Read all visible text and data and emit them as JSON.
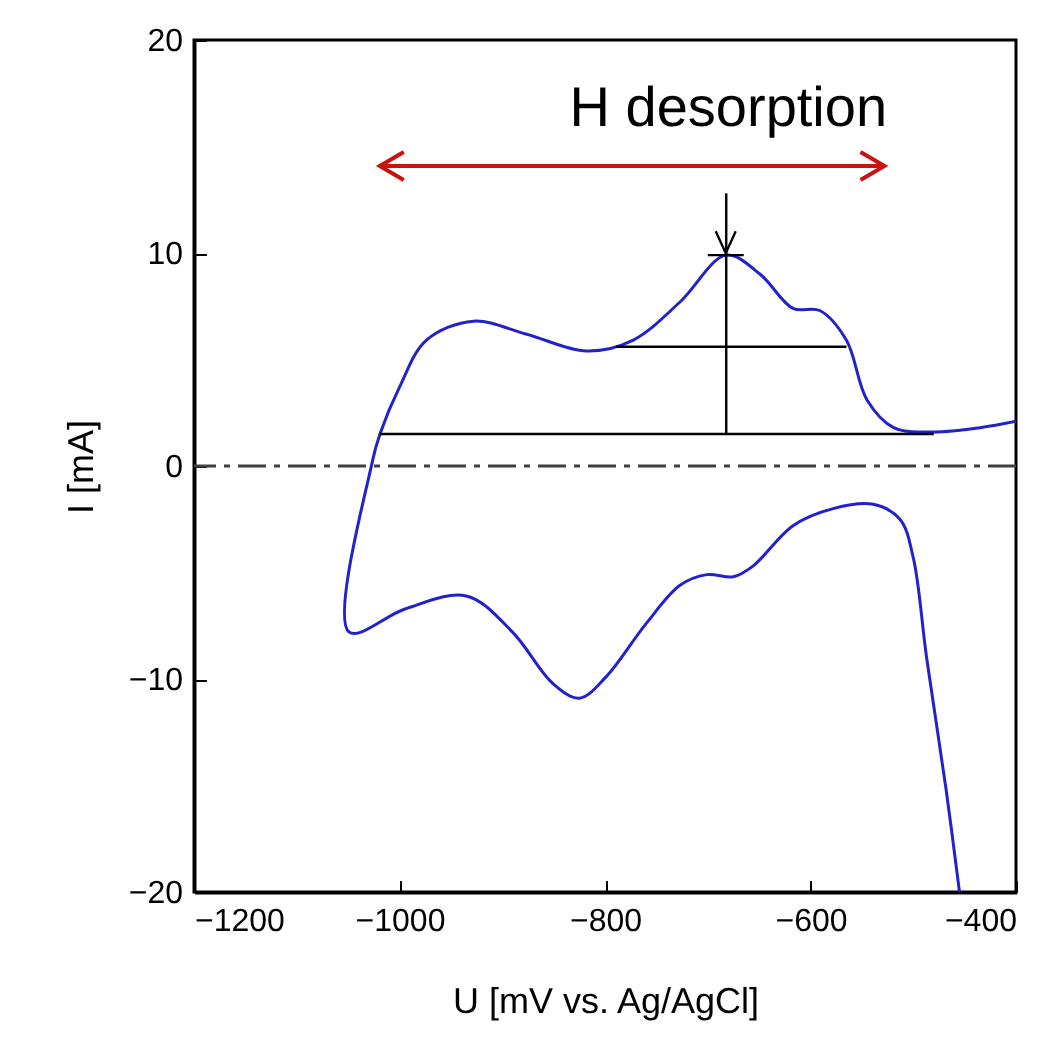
{
  "chart_data": {
    "type": "line",
    "xlabel": "U [mV vs. Ag/AgCl]",
    "ylabel": "I [mA]",
    "xlim": [
      -1200,
      -400
    ],
    "ylim": [
      -20,
      20
    ],
    "xticks": [
      -1200,
      -1000,
      -800,
      -600,
      -400
    ],
    "yticks": [
      -20,
      -10,
      0,
      10,
      20
    ],
    "grid": false,
    "annotations": [
      "H desorption"
    ],
    "ref_lines": [
      {
        "axis": "y",
        "value": 0,
        "color": "#404040",
        "line_style": "dashdot"
      }
    ],
    "series": [
      {
        "color": "#2222cc",
        "x": [
          -455,
          -468,
          -487,
          -500,
          -513,
          -539,
          -578,
          -617,
          -656,
          -675,
          -701,
          -727,
          -760,
          -799,
          -825,
          -851,
          -890,
          -935,
          -994,
          -1049,
          -1026,
          -1019,
          -1000,
          -974,
          -928,
          -877,
          -818,
          -773,
          -727,
          -682,
          -649,
          -617,
          -591,
          -565,
          -545,
          -519,
          -480,
          -435,
          -400
        ],
        "values": [
          -20,
          -15.2,
          -9.0,
          -4.3,
          -2.5,
          -1.8,
          -2.0,
          -2.8,
          -4.7,
          -5.2,
          -5.1,
          -5.6,
          -7.4,
          -9.9,
          -10.9,
          -10.2,
          -7.8,
          -6.1,
          -6.7,
          -7.8,
          0.3,
          1.5,
          3.7,
          5.9,
          6.8,
          6.2,
          5.4,
          5.9,
          7.7,
          9.9,
          9.0,
          7.4,
          7.3,
          5.9,
          3.1,
          1.8,
          1.6,
          1.8,
          2.1
        ]
      },
      {
        "color": "#000000",
        "x": [
          -1019,
          -480
        ],
        "values": [
          1.5,
          1.5
        ]
      },
      {
        "color": "#000000",
        "x": [
          -789,
          -565
        ],
        "values": [
          5.6,
          5.6
        ]
      },
      {
        "color": "#000000",
        "x": [
          -682,
          -682
        ],
        "values": [
          1.5,
          12.8
        ]
      },
      {
        "color": "#000000",
        "x": [
          -700,
          -665
        ],
        "values": [
          9.9,
          9.9
        ]
      }
    ]
  }
}
